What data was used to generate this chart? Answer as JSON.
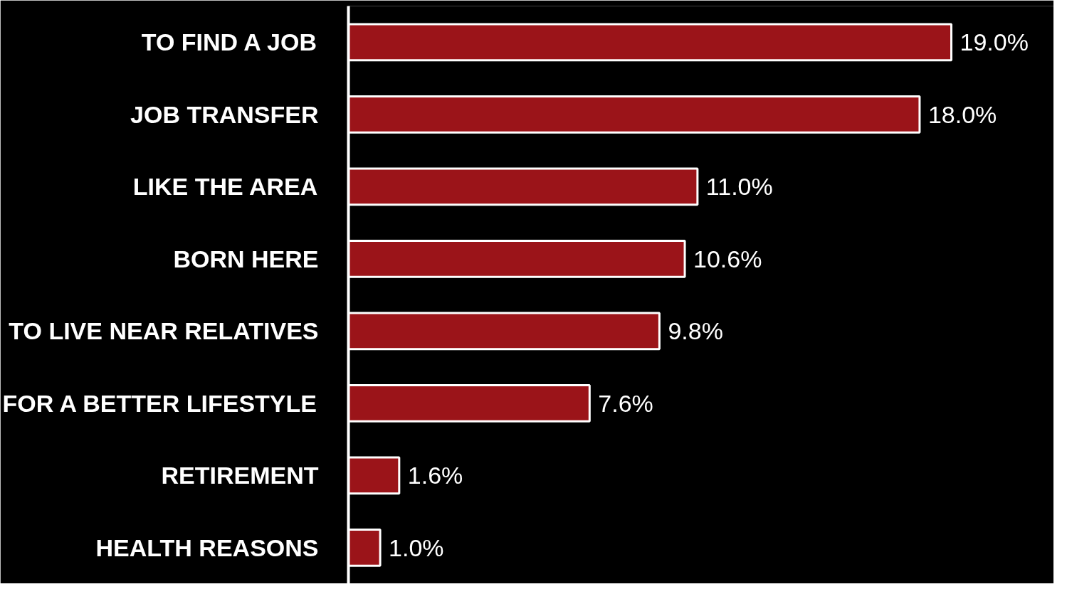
{
  "chart_data": {
    "type": "bar",
    "orientation": "horizontal",
    "categories": [
      "TO FIND A JOB",
      "JOB TRANSFER",
      "LIKE THE AREA",
      "BORN HERE",
      "TO LIVE NEAR RELATIVES",
      "FOR A BETTER LIFESTYLE",
      "RETIREMENT",
      "HEALTH REASONS"
    ],
    "values": [
      19.0,
      18.0,
      11.0,
      10.6,
      9.8,
      7.6,
      1.6,
      1.0
    ],
    "value_labels": [
      "19.0%",
      "18.0%",
      "11.0%",
      "10.6%",
      "9.8%",
      "7.6%",
      "1.6%",
      "1.0%"
    ],
    "color": "#9b1419",
    "grid": false,
    "tick_labels": "y"
  }
}
